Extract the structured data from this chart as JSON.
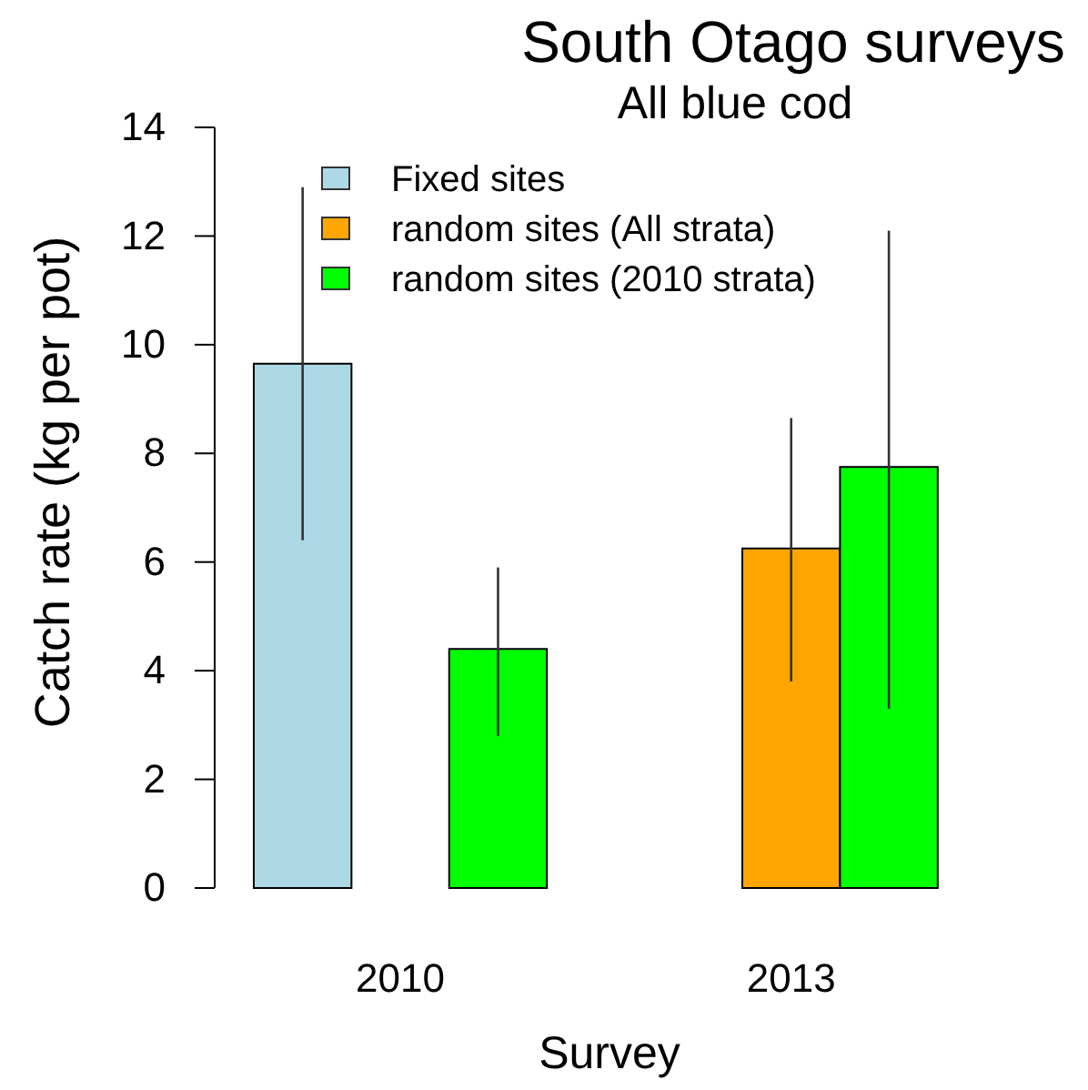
{
  "chart_data": {
    "type": "bar",
    "title": "South Otago surveys",
    "subtitle": "All blue cod",
    "xlabel": "Survey",
    "ylabel": "Catch rate (kg per pot)",
    "categories": [
      "2010",
      "2013"
    ],
    "series": [
      {
        "name": "Fixed sites",
        "color": "#add8e6",
        "values": [
          9.65,
          null
        ],
        "errors": [
          [
            6.4,
            12.9
          ],
          null
        ]
      },
      {
        "name": "random sites (All strata)",
        "color": "#ffa500",
        "values": [
          null,
          6.25
        ],
        "errors": [
          null,
          [
            3.8,
            8.65
          ]
        ]
      },
      {
        "name": "random sites (2010 strata)",
        "color": "#00ff00",
        "values": [
          4.4,
          7.75
        ],
        "errors": [
          [
            2.8,
            5.9
          ],
          [
            3.3,
            12.1
          ]
        ]
      }
    ],
    "ylim": [
      0,
      14
    ],
    "yticks": [
      0,
      2,
      4,
      6,
      8,
      10,
      12,
      14
    ],
    "legend": "top left"
  }
}
